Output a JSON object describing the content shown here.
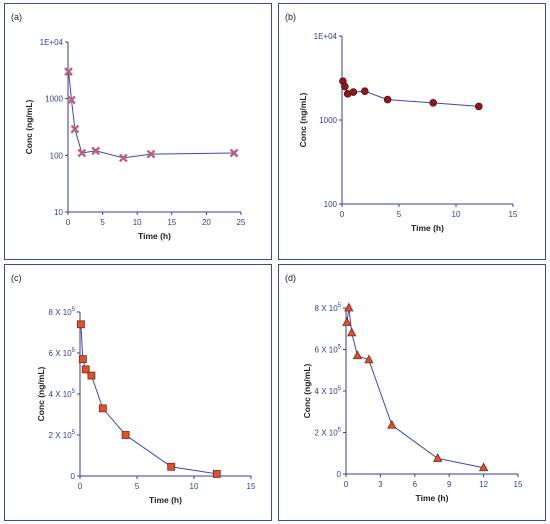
{
  "chart_data": [
    {
      "panel_label": "(a)",
      "type": "line",
      "yscale": "log",
      "xlabel": "Time (h)",
      "ylabel": "Conc (ng/mL)",
      "xlim": [
        0,
        25
      ],
      "ylim": [
        10,
        10000
      ],
      "xticks": [
        "0",
        "5",
        "10",
        "15",
        "20",
        "25"
      ],
      "yticks": [
        "10",
        "100",
        "1000",
        "1E+04"
      ],
      "marker": "x",
      "marker_color": "#d06060",
      "series": [
        {
          "x": [
            0.08,
            0.5,
            1,
            2,
            4,
            8,
            12,
            24
          ],
          "y": [
            3000,
            950,
            290,
            110,
            120,
            90,
            105,
            110
          ]
        }
      ]
    },
    {
      "panel_label": "(b)",
      "type": "line",
      "yscale": "log",
      "xlabel": "Time (h)",
      "ylabel": "Conc (ng/mL)",
      "xlim": [
        0,
        15
      ],
      "ylim": [
        100,
        10000
      ],
      "xticks": [
        "0",
        "5",
        "10",
        "15"
      ],
      "yticks": [
        "100",
        "1000",
        "1E+04"
      ],
      "marker": "circle",
      "marker_color": "#8b1a1a",
      "series": [
        {
          "x": [
            0.08,
            0.25,
            0.5,
            1,
            2,
            4,
            8,
            12
          ],
          "y": [
            2900,
            2500,
            2050,
            2150,
            2200,
            1750,
            1600,
            1450
          ]
        }
      ]
    },
    {
      "panel_label": "(c)",
      "type": "line",
      "xlabel": "Time (h)",
      "ylabel": "Conc (ng/mL)",
      "xlim": [
        0,
        15
      ],
      "ylim": [
        0,
        800000
      ],
      "xticks": [
        "0",
        "5",
        "10",
        "15"
      ],
      "yticks": [
        {
          "base": "0",
          "exp": ""
        },
        {
          "base": "2 X 10",
          "exp": "5"
        },
        {
          "base": "4 X 10",
          "exp": "5"
        },
        {
          "base": "6 X 10",
          "exp": "5"
        },
        {
          "base": "8 X 10",
          "exp": "5"
        }
      ],
      "marker": "square",
      "marker_color": "#e0502a",
      "series": [
        {
          "x": [
            0.08,
            0.25,
            0.5,
            1,
            2,
            4,
            8,
            12
          ],
          "y": [
            740000,
            570000,
            520000,
            490000,
            330000,
            200000,
            45000,
            10000
          ]
        }
      ]
    },
    {
      "panel_label": "(d)",
      "type": "line",
      "xlabel": "Time (h)",
      "ylabel": "Conc (ng/mL)",
      "xlim": [
        0,
        15
      ],
      "ylim": [
        0,
        800000
      ],
      "xticks": [
        "0",
        "3",
        "6",
        "9",
        "12",
        "15"
      ],
      "yticks": [
        {
          "base": "0",
          "exp": ""
        },
        {
          "base": "2 X 10",
          "exp": "5"
        },
        {
          "base": "4 X 10",
          "exp": "5"
        },
        {
          "base": "6 X 10",
          "exp": "5"
        },
        {
          "base": "8 X 10",
          "exp": "5"
        }
      ],
      "marker": "triangle",
      "marker_color": "#e0502a",
      "series": [
        {
          "x": [
            0.08,
            0.25,
            0.5,
            1,
            2,
            4,
            8,
            12
          ],
          "y": [
            730000,
            800000,
            680000,
            570000,
            550000,
            235000,
            75000,
            30000
          ]
        }
      ]
    }
  ]
}
